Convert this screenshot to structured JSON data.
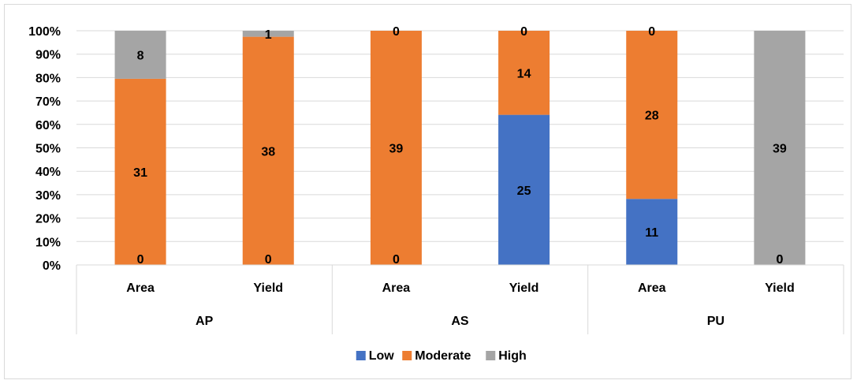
{
  "chart_data": {
    "type": "bar",
    "stacked": true,
    "percent_stacked": true,
    "categories": [
      "Area",
      "Yield",
      "Area",
      "Yield",
      "Area",
      "Yield"
    ],
    "groups": [
      {
        "label": "AP",
        "categories": [
          "Area",
          "Yield"
        ]
      },
      {
        "label": "AS",
        "categories": [
          "Area",
          "Yield"
        ]
      },
      {
        "label": "PU",
        "categories": [
          "Area",
          "Yield"
        ]
      }
    ],
    "series": [
      {
        "name": "Low",
        "color": "#4472c4",
        "values": [
          0,
          0,
          0,
          25,
          11,
          0
        ]
      },
      {
        "name": "Moderate",
        "color": "#ed7d31",
        "values": [
          31,
          38,
          39,
          14,
          28,
          0
        ]
      },
      {
        "name": "High",
        "color": "#a5a5a5",
        "values": [
          8,
          1,
          0,
          0,
          0,
          39
        ]
      }
    ],
    "yticks": [
      "0%",
      "10%",
      "20%",
      "30%",
      "40%",
      "50%",
      "60%",
      "70%",
      "80%",
      "90%",
      "100%"
    ],
    "ylim": [
      0,
      100
    ],
    "grid": true,
    "legend_position": "bottom",
    "title": "",
    "xlabel": "",
    "ylabel": ""
  }
}
